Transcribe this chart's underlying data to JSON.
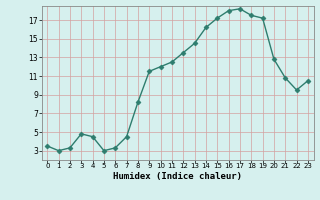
{
  "x": [
    0,
    1,
    2,
    3,
    4,
    5,
    6,
    7,
    8,
    9,
    10,
    11,
    12,
    13,
    14,
    15,
    16,
    17,
    18,
    19,
    20,
    21,
    22,
    23
  ],
  "y": [
    3.5,
    3.0,
    3.3,
    4.8,
    4.5,
    3.0,
    3.3,
    4.5,
    8.2,
    11.5,
    12.0,
    12.5,
    13.5,
    14.5,
    16.2,
    17.2,
    18.0,
    18.2,
    17.5,
    17.2,
    12.8,
    10.8,
    9.5,
    10.5
  ],
  "xlabel": "Humidex (Indice chaleur)",
  "line_color": "#2e7d6e",
  "marker_color": "#2e7d6e",
  "bg_color": "#d6f0ee",
  "grid_color_major": "#d4a0a0",
  "grid_color_minor": "#e8d0d0",
  "ylim": [
    2.0,
    18.5
  ],
  "xlim": [
    -0.5,
    23.5
  ],
  "yticks": [
    3,
    5,
    7,
    9,
    11,
    13,
    15,
    17
  ],
  "xticks": [
    0,
    1,
    2,
    3,
    4,
    5,
    6,
    7,
    8,
    9,
    10,
    11,
    12,
    13,
    14,
    15,
    16,
    17,
    18,
    19,
    20,
    21,
    22,
    23
  ],
  "xlabel_fontsize": 6.5,
  "tick_fontsize_x": 5.0,
  "tick_fontsize_y": 5.5
}
